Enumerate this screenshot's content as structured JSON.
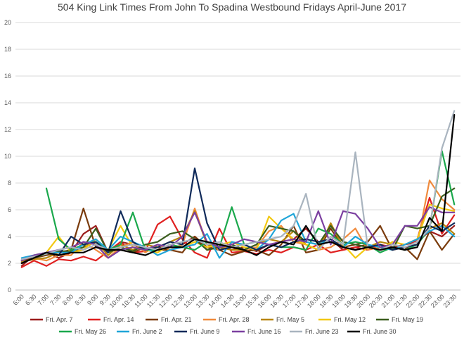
{
  "chart_data": {
    "type": "line",
    "title": "504 King Link Times From John To Spadina Westbound Fridays April-June 2017",
    "xlabel": "",
    "ylabel": "",
    "ylim": [
      0,
      20
    ],
    "yticks": [
      0,
      2,
      4,
      6,
      8,
      10,
      12,
      14,
      16,
      18,
      20
    ],
    "grid": true,
    "legend_position": "bottom",
    "x": [
      "6:00",
      "6:30",
      "7:00",
      "7:30",
      "8:00",
      "8:30",
      "9:00",
      "9:30",
      "10:00",
      "10:30",
      "11:00",
      "11:30",
      "12:00",
      "12:30",
      "13:00",
      "13:30",
      "14:00",
      "14:30",
      "15:00",
      "15:30",
      "16:00",
      "16:30",
      "17:00",
      "17:30",
      "18:00",
      "18:30",
      "19:00",
      "19:30",
      "20:00",
      "20:30",
      "21:00",
      "21:30",
      "22:00",
      "22:30",
      "23:00",
      "23:30"
    ],
    "series": [
      {
        "name": "Fri. Apr. 7",
        "color": "#9b1c1c",
        "values": [
          1.8,
          2.6,
          2.8,
          2.4,
          2.8,
          4.2,
          4.8,
          2.8,
          3.6,
          3.4,
          3.0,
          3.2,
          3.0,
          3.4,
          4.0,
          3.0,
          3.2,
          3.0,
          3.2,
          2.9,
          3.4,
          3.6,
          3.8,
          4.6,
          3.6,
          3.8,
          3.0,
          3.2,
          3.4,
          3.0,
          3.2,
          3.4,
          3.6,
          4.4,
          4.0,
          4.8
        ]
      },
      {
        "name": "Fri. Apr. 14",
        "color": "#e02020",
        "values": [
          1.7,
          2.2,
          1.8,
          2.3,
          2.2,
          2.5,
          2.2,
          2.9,
          3.6,
          2.8,
          2.9,
          4.9,
          5.5,
          3.8,
          2.8,
          2.4,
          4.6,
          2.8,
          2.9,
          2.7,
          3.0,
          2.8,
          3.2,
          3.0,
          3.4,
          2.8,
          3.0,
          3.2,
          3.0,
          3.4,
          3.2,
          3.0,
          3.8,
          6.9,
          4.2,
          5.6
        ]
      },
      {
        "name": "Fri. Apr. 21",
        "color": "#7a3b0c",
        "values": [
          2.2,
          2.4,
          2.6,
          2.8,
          3.0,
          6.1,
          3.2,
          2.9,
          3.0,
          2.8,
          3.2,
          3.0,
          3.0,
          2.8,
          4.0,
          3.2,
          3.0,
          2.6,
          2.9,
          3.0,
          2.6,
          3.4,
          4.8,
          2.8,
          3.0,
          4.6,
          3.2,
          3.4,
          3.6,
          4.8,
          3.0,
          3.2,
          2.3,
          4.4,
          3.0,
          4.2
        ]
      },
      {
        "name": "Fri. Apr. 28",
        "color": "#f08a3c",
        "values": [
          2.0,
          2.4,
          2.2,
          2.6,
          2.6,
          3.6,
          3.0,
          2.4,
          3.2,
          3.6,
          2.8,
          3.4,
          3.0,
          3.4,
          6.1,
          3.4,
          3.0,
          3.4,
          3.0,
          3.2,
          4.4,
          4.8,
          3.6,
          3.4,
          3.0,
          3.2,
          3.8,
          4.6,
          3.0,
          3.2,
          3.0,
          3.2,
          3.4,
          8.2,
          6.8,
          6.0
        ]
      },
      {
        "name": "Fri. May 5",
        "color": "#b8860b",
        "values": [
          2.1,
          2.3,
          2.4,
          2.8,
          2.8,
          3.2,
          3.6,
          2.6,
          3.4,
          3.0,
          3.4,
          3.2,
          3.6,
          4.0,
          5.9,
          3.4,
          3.2,
          3.0,
          3.0,
          3.4,
          3.8,
          3.6,
          4.4,
          3.4,
          3.0,
          5.0,
          3.2,
          3.0,
          3.2,
          3.6,
          3.4,
          3.2,
          3.4,
          4.6,
          5.0,
          4.2
        ]
      },
      {
        "name": "Fri. May 12",
        "color": "#f2c811",
        "values": [
          2.2,
          2.6,
          2.8,
          4.0,
          2.8,
          3.0,
          3.8,
          3.0,
          4.8,
          3.2,
          3.0,
          2.8,
          3.4,
          3.2,
          3.6,
          3.2,
          3.4,
          3.6,
          3.2,
          3.0,
          5.5,
          4.6,
          3.8,
          3.4,
          3.0,
          4.0,
          3.4,
          2.4,
          3.2,
          3.0,
          3.6,
          3.4,
          3.8,
          6.4,
          6.1,
          5.9
        ]
      },
      {
        "name": "Fri. May 19",
        "color": "#3b5e1e",
        "values": [
          2.0,
          2.4,
          2.7,
          2.9,
          2.9,
          3.2,
          4.6,
          2.8,
          3.2,
          2.9,
          3.4,
          3.6,
          4.2,
          4.4,
          3.8,
          3.0,
          3.2,
          3.4,
          3.0,
          3.4,
          4.8,
          4.6,
          4.4,
          3.6,
          3.4,
          4.8,
          3.6,
          3.4,
          3.2,
          3.4,
          3.0,
          4.8,
          4.6,
          4.8,
          7.0,
          7.6
        ]
      },
      {
        "name": "Fri. May 26",
        "color": "#1aa84c",
        "values": [
          null,
          null,
          7.6,
          3.8,
          3.0,
          3.4,
          3.6,
          3.0,
          3.4,
          5.8,
          3.0,
          3.0,
          3.4,
          3.2,
          3.0,
          3.6,
          3.2,
          6.2,
          3.4,
          3.6,
          3.4,
          3.2,
          3.2,
          3.0,
          4.6,
          4.2,
          3.4,
          3.6,
          3.4,
          2.8,
          3.2,
          3.0,
          3.4,
          4.6,
          10.4,
          6.4
        ]
      },
      {
        "name": "Fri. June 2",
        "color": "#1fa5d8",
        "values": [
          2.4,
          2.6,
          2.8,
          2.8,
          2.8,
          3.4,
          3.8,
          3.0,
          4.0,
          3.6,
          3.2,
          2.6,
          3.0,
          3.2,
          3.4,
          4.2,
          2.4,
          3.6,
          3.4,
          3.0,
          3.8,
          5.2,
          5.7,
          3.6,
          3.4,
          3.8,
          3.2,
          4.0,
          3.4,
          3.2,
          3.0,
          3.4,
          3.8,
          4.4,
          4.8,
          4.0
        ]
      },
      {
        "name": "Fri. June 9",
        "color": "#0f2a5a",
        "values": [
          2.0,
          2.4,
          2.8,
          2.6,
          4.0,
          3.4,
          3.6,
          2.8,
          5.9,
          3.6,
          3.0,
          3.2,
          3.6,
          3.4,
          9.1,
          5.0,
          3.0,
          3.2,
          3.4,
          3.0,
          3.4,
          3.2,
          3.6,
          3.8,
          3.6,
          3.8,
          3.2,
          3.0,
          3.2,
          3.4,
          3.0,
          3.2,
          3.4,
          4.8,
          4.4,
          5.0
        ]
      },
      {
        "name": "Fri. June 16",
        "color": "#7b3fa0",
        "values": [
          2.2,
          2.6,
          2.8,
          3.0,
          3.2,
          3.6,
          3.4,
          2.4,
          3.0,
          3.2,
          3.0,
          3.4,
          3.2,
          4.0,
          5.8,
          3.6,
          3.2,
          3.4,
          3.8,
          3.6,
          3.4,
          3.6,
          3.8,
          3.6,
          5.9,
          3.4,
          5.9,
          5.7,
          4.6,
          3.2,
          3.4,
          4.8,
          4.8,
          6.2,
          5.8,
          5.8
        ]
      },
      {
        "name": "Fri. June 23",
        "color": "#a9b4bf",
        "values": [
          2.3,
          2.5,
          2.7,
          3.0,
          3.2,
          3.0,
          3.4,
          3.0,
          3.2,
          3.4,
          3.2,
          3.0,
          3.4,
          3.6,
          3.8,
          3.4,
          3.6,
          3.2,
          3.4,
          3.6,
          3.8,
          4.0,
          4.8,
          7.2,
          3.0,
          4.0,
          3.4,
          10.3,
          3.2,
          3.0,
          3.4,
          3.2,
          3.6,
          4.6,
          10.6,
          13.4
        ]
      },
      {
        "name": "Fri. June 30",
        "color": "#000000",
        "values": [
          2.0,
          2.4,
          2.8,
          2.6,
          2.8,
          2.8,
          3.2,
          3.0,
          3.0,
          2.8,
          2.6,
          3.0,
          3.2,
          3.2,
          3.8,
          3.6,
          3.4,
          3.2,
          3.0,
          2.6,
          3.2,
          3.6,
          3.4,
          4.8,
          3.4,
          3.6,
          3.2,
          3.0,
          3.2,
          3.0,
          3.2,
          3.0,
          3.2,
          5.4,
          4.4,
          13.1
        ]
      }
    ]
  }
}
